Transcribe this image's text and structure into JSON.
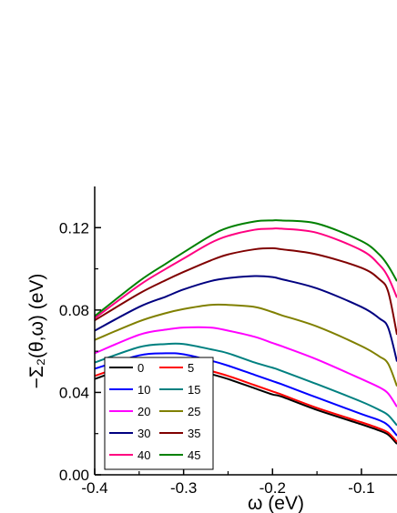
{
  "chart_data": {
    "type": "line",
    "xlabel": "ω (eV)",
    "ylabel": "−Σ₂(θ,ω) (eV)",
    "xlim": [
      -0.4,
      -0.06
    ],
    "ylim": [
      0.0,
      0.14
    ],
    "xticks": [
      -0.4,
      -0.3,
      -0.2,
      -0.1
    ],
    "xtick_labels": [
      "-0.4",
      "-0.3",
      "-0.2",
      "-0.1"
    ],
    "yticks": [
      0.0,
      0.04,
      0.08,
      0.12
    ],
    "ytick_labels": [
      "0.00",
      "0.04",
      "0.08",
      "0.12"
    ],
    "grid": false,
    "legend_position": "lower-left",
    "x": [
      -0.4,
      -0.35,
      -0.32,
      -0.3,
      -0.27,
      -0.25,
      -0.22,
      -0.2,
      -0.19,
      -0.15,
      -0.1,
      -0.08,
      -0.07,
      -0.06
    ],
    "series": [
      {
        "name": "0",
        "color": "#000000",
        "values": [
          0.0465,
          0.054,
          0.0545,
          0.0525,
          0.049,
          0.0465,
          0.042,
          0.039,
          0.038,
          0.0315,
          0.0245,
          0.0215,
          0.0195,
          0.015
        ]
      },
      {
        "name": "5",
        "color": "#ff0000",
        "values": [
          0.048,
          0.055,
          0.0555,
          0.054,
          0.0505,
          0.048,
          0.0435,
          0.0405,
          0.039,
          0.0325,
          0.0255,
          0.0225,
          0.0205,
          0.016
        ]
      },
      {
        "name": "10",
        "color": "#0000ff",
        "values": [
          0.0515,
          0.058,
          0.059,
          0.0585,
          0.0555,
          0.053,
          0.0485,
          0.0455,
          0.044,
          0.0375,
          0.0295,
          0.0265,
          0.024,
          0.019
        ]
      },
      {
        "name": "15",
        "color": "#008080",
        "values": [
          0.0545,
          0.062,
          0.0635,
          0.0635,
          0.061,
          0.059,
          0.0545,
          0.052,
          0.0505,
          0.044,
          0.0355,
          0.0315,
          0.029,
          0.024
        ]
      },
      {
        "name": "20",
        "color": "#ff00ff",
        "values": [
          0.059,
          0.068,
          0.0705,
          0.0715,
          0.0715,
          0.07,
          0.067,
          0.064,
          0.0625,
          0.056,
          0.0465,
          0.0425,
          0.0395,
          0.033
        ]
      },
      {
        "name": "25",
        "color": "#808000",
        "values": [
          0.0655,
          0.0745,
          0.0785,
          0.0805,
          0.0825,
          0.0825,
          0.0815,
          0.079,
          0.0775,
          0.072,
          0.0625,
          0.0575,
          0.054,
          0.043
        ]
      },
      {
        "name": "30",
        "color": "#000080",
        "values": [
          0.07,
          0.0815,
          0.0865,
          0.09,
          0.094,
          0.0955,
          0.0965,
          0.096,
          0.095,
          0.0905,
          0.0815,
          0.076,
          0.0715,
          0.055
        ]
      },
      {
        "name": "35",
        "color": "#800000",
        "values": [
          0.075,
          0.088,
          0.0945,
          0.0985,
          0.104,
          0.107,
          0.1095,
          0.11,
          0.1095,
          0.107,
          0.1005,
          0.095,
          0.089,
          0.068
        ]
      },
      {
        "name": "40",
        "color": "#ff0080",
        "values": [
          0.076,
          0.092,
          0.1,
          0.105,
          0.1125,
          0.116,
          0.119,
          0.1195,
          0.1195,
          0.1175,
          0.109,
          0.102,
          0.096,
          0.086
        ]
      },
      {
        "name": "45",
        "color": "#008000",
        "values": [
          0.077,
          0.094,
          0.1025,
          0.108,
          0.116,
          0.12,
          0.123,
          0.1235,
          0.1235,
          0.122,
          0.1135,
          0.107,
          0.1015,
          0.094
        ]
      }
    ]
  }
}
